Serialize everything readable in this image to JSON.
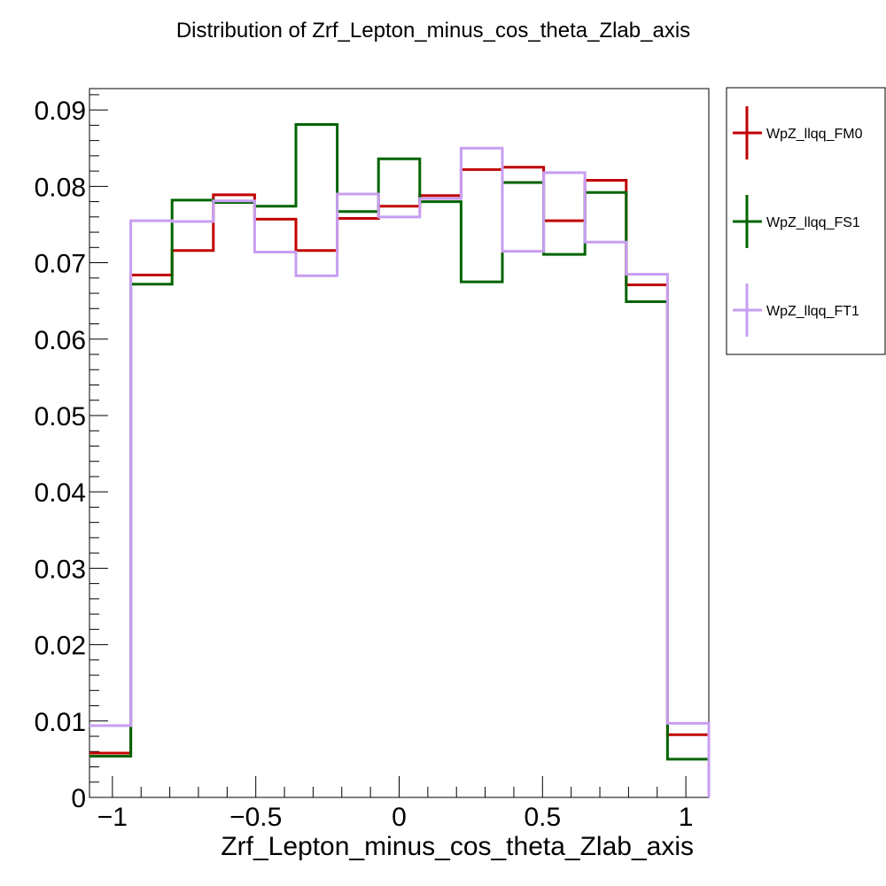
{
  "chart_data": {
    "type": "histogram",
    "title": "Distribution of Zrf_Lepton_minus_cos_theta_Zlab_axis",
    "xlabel": "Zrf_Lepton_minus_cos_theta_Zlab_axis",
    "ylabel": "",
    "xlim": [
      -1.08,
      1.08
    ],
    "ylim": [
      0,
      0.0928
    ],
    "x_ticks": [
      -1,
      -0.5,
      0,
      0.5,
      1
    ],
    "x_tick_labels": [
      "−1",
      "−0.5",
      "0",
      "0.5",
      "1"
    ],
    "y_ticks": [
      0,
      0.01,
      0.02,
      0.03,
      0.04,
      0.05,
      0.06,
      0.07,
      0.08,
      0.09
    ],
    "y_tick_labels": [
      "0",
      "0.01",
      "0.02",
      "0.03",
      "0.04",
      "0.05",
      "0.06",
      "0.07",
      "0.08",
      "0.09"
    ],
    "bin_edges": [
      -1.08,
      -0.936,
      -0.792,
      -0.648,
      -0.504,
      -0.36,
      -0.216,
      -0.072,
      0.072,
      0.216,
      0.36,
      0.504,
      0.648,
      0.792,
      0.936,
      1.08
    ],
    "legend_position": "right",
    "series": [
      {
        "name": "WpZ_llqq_FM0",
        "color": "#c00000",
        "values": [
          0.0058,
          0.0684,
          0.0716,
          0.0789,
          0.0757,
          0.0716,
          0.0758,
          0.0774,
          0.0788,
          0.0822,
          0.0825,
          0.0755,
          0.0808,
          0.0671,
          0.0082
        ]
      },
      {
        "name": "WpZ_llqq_FS1",
        "color": "#006400",
        "values": [
          0.0054,
          0.0672,
          0.0782,
          0.0779,
          0.0774,
          0.0881,
          0.0767,
          0.0836,
          0.078,
          0.0675,
          0.0805,
          0.0711,
          0.0792,
          0.0649,
          0.005
        ]
      },
      {
        "name": "WpZ_llqq_FT1",
        "color": "#c89ef2",
        "values": [
          0.0094,
          0.0755,
          0.0754,
          0.0781,
          0.0714,
          0.0683,
          0.079,
          0.076,
          0.0784,
          0.085,
          0.0715,
          0.0818,
          0.0727,
          0.0685,
          0.0097
        ]
      }
    ]
  }
}
